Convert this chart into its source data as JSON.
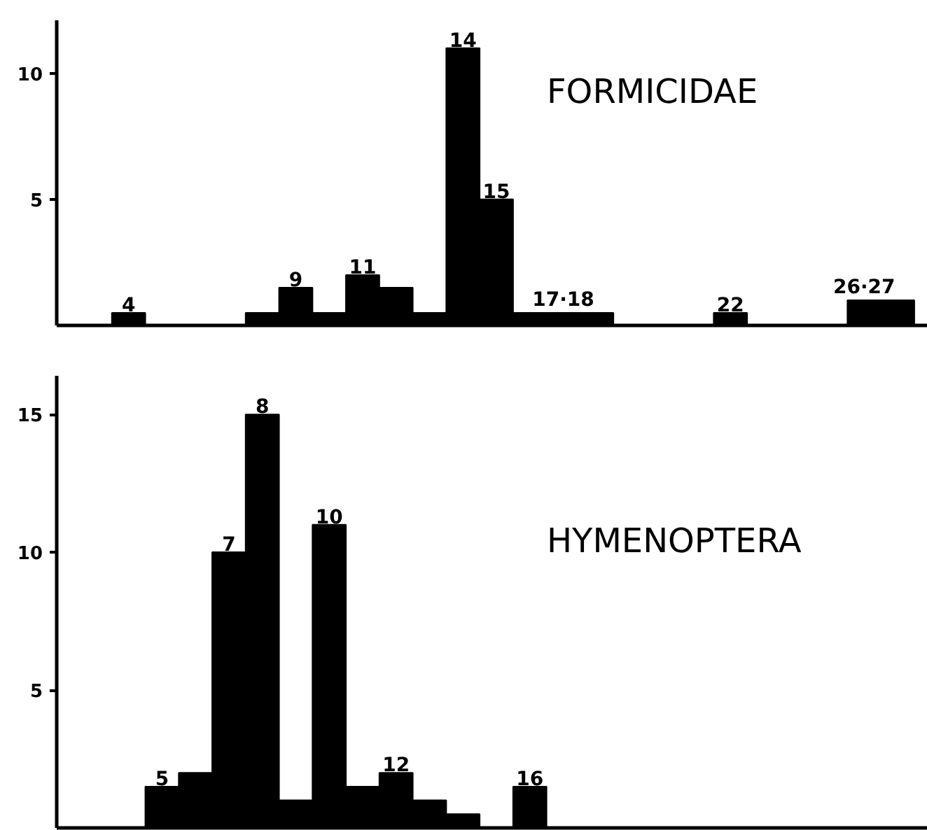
{
  "chart_data": [
    {
      "type": "bar",
      "title": "FORMICIDAE",
      "categories": [
        "4",
        null,
        null,
        null,
        null,
        "9",
        null,
        "11",
        null,
        null,
        "14",
        "15",
        null,
        "17·18",
        null,
        null,
        null,
        null,
        "22",
        null,
        null,
        null,
        "26·27",
        null
      ],
      "values": [
        0.5,
        0,
        0,
        0,
        0.5,
        1.5,
        0.5,
        2,
        1.5,
        0.5,
        11,
        5,
        0.5,
        0.5,
        0.5,
        0,
        0,
        0,
        0.5,
        0,
        0,
        0,
        1,
        1
      ],
      "color": "#000000",
      "ylim": [
        0,
        12.1
      ],
      "yticks": [
        5,
        10
      ],
      "grid": false
    },
    {
      "type": "bar",
      "title": "HYMENOPTERA",
      "categories": [
        "5",
        null,
        "7",
        "8",
        null,
        "10",
        null,
        "12",
        null,
        null,
        null,
        "16"
      ],
      "values": [
        1.5,
        2,
        10,
        15,
        1,
        11,
        1.5,
        2,
        1,
        0.5,
        0,
        1.5
      ],
      "color": "#000000",
      "ylim": [
        0,
        16.4
      ],
      "yticks": [
        5,
        10,
        15
      ],
      "grid": false
    }
  ]
}
